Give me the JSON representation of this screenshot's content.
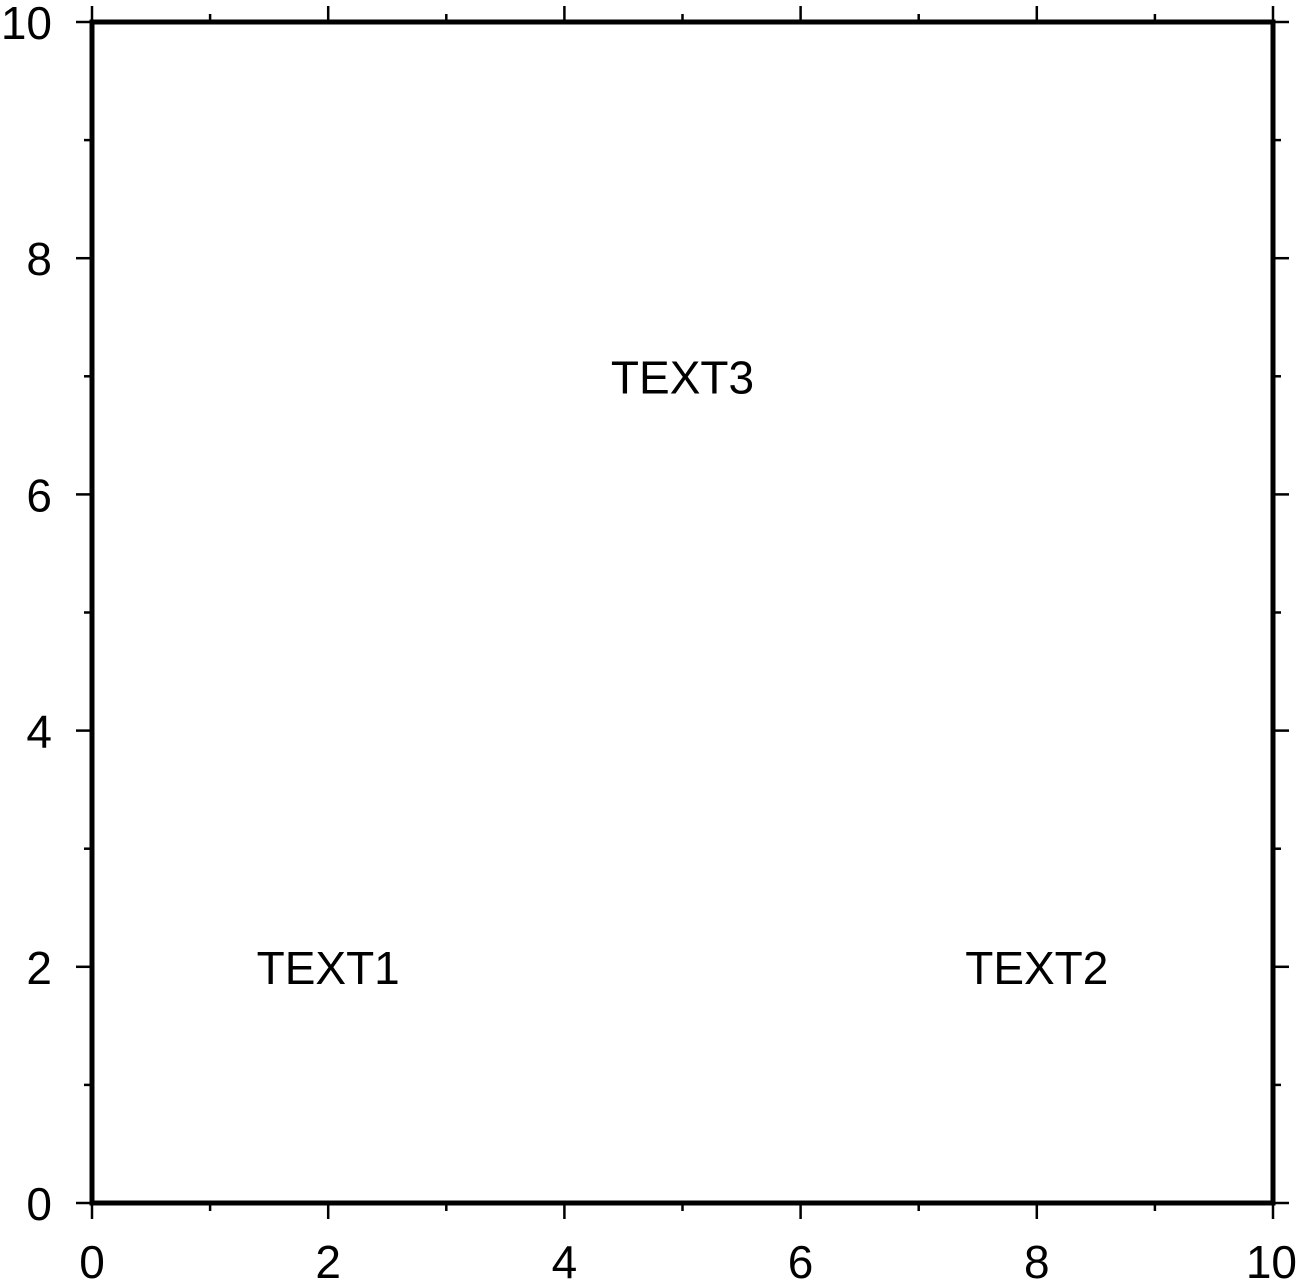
{
  "chart_data": {
    "type": "scatter",
    "title": "",
    "xlabel": "",
    "ylabel": "",
    "xlim": [
      0,
      10
    ],
    "ylim": [
      0,
      10
    ],
    "x_major_ticks": [
      0,
      2,
      4,
      6,
      8,
      10
    ],
    "x_minor_ticks": [
      1,
      3,
      5,
      7,
      9
    ],
    "y_major_ticks": [
      0,
      2,
      4,
      6,
      8,
      10
    ],
    "y_minor_ticks": [
      1,
      3,
      5,
      7,
      9
    ],
    "x_tick_labels": [
      "0",
      "2",
      "4",
      "6",
      "8",
      "10"
    ],
    "y_tick_labels": [
      "0",
      "2",
      "4",
      "6",
      "8",
      "10"
    ],
    "grid": false,
    "frame_color": "#000000",
    "annotations": [
      {
        "text": "TEXT1",
        "x": 2,
        "y": 2
      },
      {
        "text": "TEXT2",
        "x": 8,
        "y": 2
      },
      {
        "text": "TEXT3",
        "x": 5,
        "y": 7
      }
    ]
  }
}
